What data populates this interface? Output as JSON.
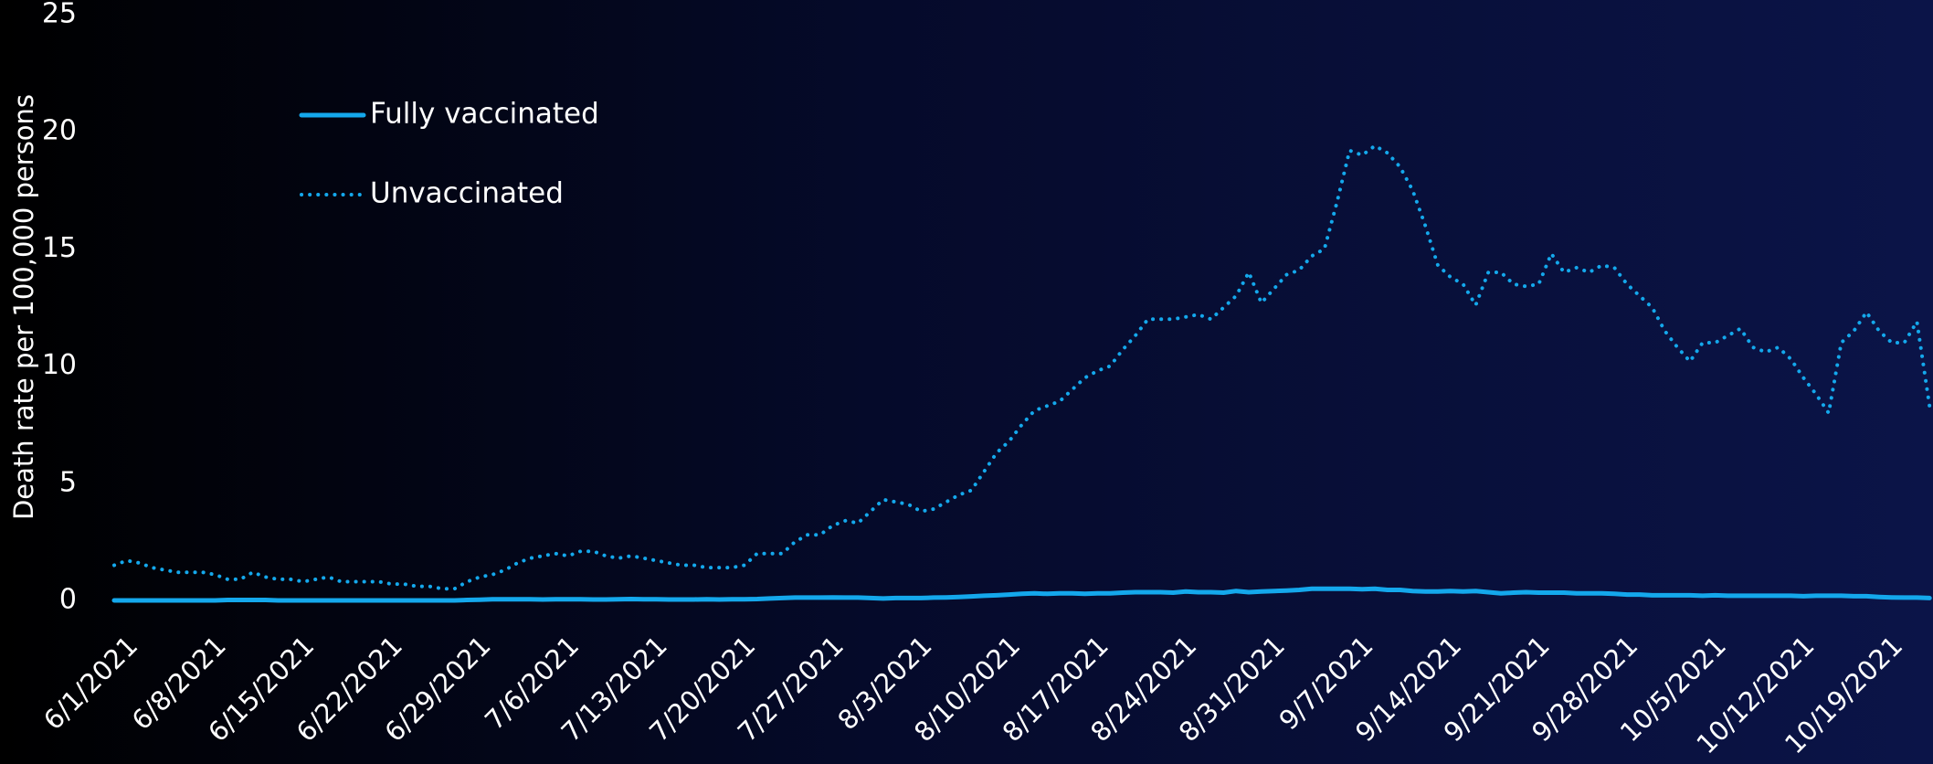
{
  "chart_data": {
    "type": "line",
    "y_label": "Death rate per 100,000 persons",
    "categories": [
      "6/1/2021",
      null,
      null,
      null,
      null,
      null,
      null,
      "6/8/2021",
      null,
      null,
      null,
      null,
      null,
      null,
      "6/15/2021",
      null,
      null,
      null,
      null,
      null,
      null,
      "6/22/2021",
      null,
      null,
      null,
      null,
      null,
      null,
      "6/29/2021",
      null,
      null,
      null,
      null,
      null,
      null,
      "7/6/2021",
      null,
      null,
      null,
      null,
      null,
      null,
      "7/13/2021",
      null,
      null,
      null,
      null,
      null,
      null,
      "7/20/2021",
      null,
      null,
      null,
      null,
      null,
      null,
      "7/27/2021",
      null,
      null,
      null,
      null,
      null,
      null,
      "8/3/2021",
      null,
      null,
      null,
      null,
      null,
      null,
      "8/10/2021",
      null,
      null,
      null,
      null,
      null,
      null,
      "8/17/2021",
      null,
      null,
      null,
      null,
      null,
      null,
      "8/24/2021",
      null,
      null,
      null,
      null,
      null,
      null,
      "8/31/2021",
      null,
      null,
      null,
      null,
      null,
      null,
      "9/7/2021",
      null,
      null,
      null,
      null,
      null,
      null,
      "9/14/2021",
      null,
      null,
      null,
      null,
      null,
      null,
      "9/21/2021",
      null,
      null,
      null,
      null,
      null,
      null,
      "9/28/2021",
      null,
      null,
      null,
      null,
      null,
      null,
      "10/5/2021",
      null,
      null,
      null,
      null,
      null,
      null,
      "10/12/2021",
      null,
      null,
      null,
      null,
      null,
      null,
      "10/19/2021",
      null,
      null,
      null,
      null
    ],
    "series": [
      {
        "name": "Fully vaccinated",
        "color": "#14a8ec",
        "style": "solid",
        "values": [
          0,
          0,
          0,
          0,
          0,
          0,
          0,
          0,
          0,
          0.02,
          0.02,
          0.02,
          0.02,
          0,
          0,
          0,
          0,
          0,
          0,
          0,
          0,
          0,
          0,
          0,
          0,
          0,
          0,
          0,
          0.02,
          0.03,
          0.05,
          0.05,
          0.05,
          0.05,
          0.04,
          0.05,
          0.05,
          0.05,
          0.04,
          0.04,
          0.05,
          0.06,
          0.05,
          0.05,
          0.04,
          0.04,
          0.04,
          0.05,
          0.04,
          0.05,
          0.05,
          0.06,
          0.08,
          0.1,
          0.12,
          0.12,
          0.12,
          0.13,
          0.12,
          0.12,
          0.1,
          0.08,
          0.1,
          0.1,
          0.1,
          0.12,
          0.13,
          0.15,
          0.17,
          0.2,
          0.22,
          0.25,
          0.28,
          0.3,
          0.28,
          0.3,
          0.3,
          0.28,
          0.3,
          0.3,
          0.33,
          0.35,
          0.35,
          0.35,
          0.33,
          0.38,
          0.35,
          0.35,
          0.33,
          0.4,
          0.35,
          0.38,
          0.4,
          0.42,
          0.45,
          0.5,
          0.5,
          0.5,
          0.5,
          0.48,
          0.5,
          0.45,
          0.45,
          0.4,
          0.38,
          0.38,
          0.4,
          0.38,
          0.4,
          0.35,
          0.3,
          0.33,
          0.35,
          0.33,
          0.33,
          0.33,
          0.3,
          0.3,
          0.3,
          0.28,
          0.25,
          0.25,
          0.22,
          0.22,
          0.22,
          0.22,
          0.2,
          0.22,
          0.2,
          0.2,
          0.2,
          0.2,
          0.2,
          0.2,
          0.18,
          0.2,
          0.2,
          0.2,
          0.18,
          0.18,
          0.15,
          0.13,
          0.12,
          0.12,
          0.1
        ]
      },
      {
        "name": "Unvaccinated",
        "color": "#14a8ec",
        "style": "dotted",
        "values": [
          1.5,
          1.7,
          1.6,
          1.4,
          1.3,
          1.2,
          1.2,
          1.2,
          1.1,
          0.9,
          0.9,
          1.2,
          1.0,
          0.9,
          0.9,
          0.8,
          0.9,
          1.0,
          0.8,
          0.8,
          0.8,
          0.8,
          0.7,
          0.7,
          0.6,
          0.6,
          0.5,
          0.5,
          0.8,
          1.0,
          1.1,
          1.3,
          1.6,
          1.8,
          1.9,
          2.0,
          1.9,
          2.1,
          2.1,
          1.9,
          1.8,
          1.9,
          1.8,
          1.7,
          1.6,
          1.5,
          1.5,
          1.4,
          1.4,
          1.4,
          1.5,
          2.0,
          2.0,
          2.0,
          2.5,
          2.8,
          2.8,
          3.2,
          3.4,
          3.3,
          3.8,
          4.3,
          4.2,
          4.1,
          3.8,
          3.9,
          4.2,
          4.5,
          4.7,
          5.5,
          6.3,
          6.8,
          7.5,
          8.1,
          8.3,
          8.5,
          9.0,
          9.5,
          9.8,
          10.0,
          10.7,
          11.3,
          12.0,
          12.0,
          12.0,
          12.1,
          12.2,
          12.0,
          12.5,
          13.0,
          14.0,
          12.7,
          13.3,
          13.9,
          14.1,
          14.7,
          15.0,
          17.0,
          19.2,
          19.0,
          19.4,
          19.1,
          18.5,
          17.5,
          16.0,
          14.3,
          13.8,
          13.5,
          12.6,
          14.0,
          14.0,
          13.5,
          13.4,
          13.5,
          14.8,
          14.0,
          14.2,
          14.0,
          14.3,
          14.2,
          13.5,
          13.0,
          12.5,
          11.5,
          10.8,
          10.2,
          11.0,
          11.0,
          11.3,
          11.6,
          10.8,
          10.6,
          10.8,
          10.3,
          9.5,
          8.8,
          8.0,
          11.0,
          11.5,
          12.3,
          11.5,
          11.0,
          11.0,
          11.9,
          8.3
        ]
      }
    ],
    "ylim": [
      0,
      25
    ],
    "yticks": [
      0,
      5,
      10,
      15,
      20,
      25
    ],
    "grid": false,
    "legend": "upper left"
  }
}
